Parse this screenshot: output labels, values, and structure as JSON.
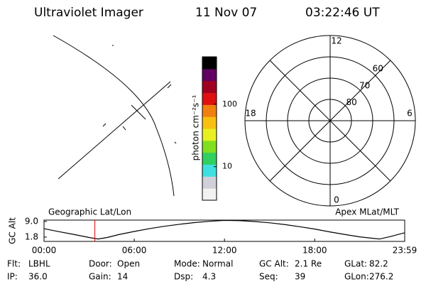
{
  "header": {
    "title": "Ultraviolet Imager",
    "date": "11 Nov 07",
    "time": "03:22:46 UT"
  },
  "colorbar": {
    "label": "photon cm⁻²s⁻¹",
    "log": true,
    "clim": [
      2.9,
      575
    ],
    "ticks": [
      10,
      100
    ],
    "colors": [
      "#f2f2f2",
      "#d0d0d8",
      "#40e0e0",
      "#30d060",
      "#80e020",
      "#e8f020",
      "#f8c010",
      "#f08010",
      "#e01010",
      "#a00020",
      "#600060",
      "#000000"
    ]
  },
  "polar": {
    "lat_min": 50,
    "rings": [
      80,
      70,
      60
    ],
    "hours": [
      12,
      18,
      6,
      0
    ]
  },
  "orbit": {
    "type": "line",
    "left_label": "Geographic Lat/Lon",
    "right_label": "Apex MLat/MLT",
    "ylabel": "GC Alt",
    "x": [
      0,
      1,
      2,
      3,
      3.6,
      4.2,
      5,
      6,
      7,
      8,
      9,
      10,
      11,
      12,
      13,
      14,
      15,
      16,
      17,
      18,
      19,
      20,
      21,
      22.3,
      23,
      23.983
    ],
    "values": [
      5.7,
      4.3,
      3.0,
      1.6,
      0.9,
      1.6,
      3.0,
      4.4,
      5.7,
      6.8,
      7.7,
      8.5,
      9.1,
      9.5,
      9.4,
      9.0,
      8.4,
      7.6,
      6.6,
      5.5,
      4.2,
      3.0,
      1.9,
      0.9,
      2.0,
      3.8
    ],
    "color": "#000000",
    "marker_x": 3.38,
    "marker_color": "#e00000",
    "xlim": [
      0,
      23.983
    ],
    "ylim": [
      -0.2,
      9.65
    ],
    "xticks": [
      {
        "value": 0,
        "label": "00:00"
      },
      {
        "value": 6,
        "label": "06:00"
      },
      {
        "value": 12,
        "label": "12:00"
      },
      {
        "value": 18,
        "label": "18:00"
      },
      {
        "value": 23.983,
        "label": "23:59"
      }
    ],
    "yticks": [
      {
        "value": 9.0,
        "label": "9.0"
      },
      1.8
    ]
  },
  "info": {
    "rows": [
      [
        [
          "Flt:",
          "LBHL"
        ],
        [
          "Door:",
          "Open"
        ],
        [
          "Mode:",
          "Normal"
        ],
        [
          "GC Alt:",
          "2.1 Re"
        ],
        [
          "GLat:",
          "82.2"
        ]
      ],
      [
        [
          "IP:",
          "36.0"
        ],
        [
          "Gain:",
          "14"
        ],
        [
          "Dsp:",
          "4.3"
        ],
        [
          "Seq:",
          "39"
        ],
        [
          "GLon:",
          "276.2"
        ]
      ]
    ]
  }
}
